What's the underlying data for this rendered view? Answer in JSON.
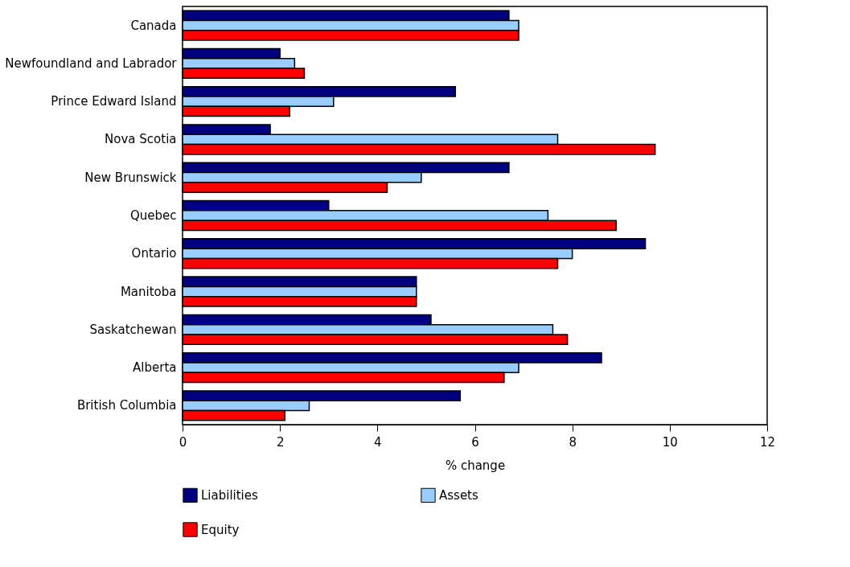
{
  "chart_data": {
    "type": "bar",
    "orientation": "horizontal",
    "xlabel": "% change",
    "categories": [
      "Canada",
      "Newfoundland and Labrador",
      "Prince Edward Island",
      "Nova Scotia",
      "New Brunswick",
      "Quebec",
      "Ontario",
      "Manitoba",
      "Saskatchewan",
      "Alberta",
      "British Columbia"
    ],
    "series": [
      {
        "name": "Liabilities",
        "color": "#000080",
        "values": [
          6.7,
          2.0,
          5.6,
          1.8,
          6.7,
          3.0,
          9.5,
          4.8,
          5.1,
          8.6,
          5.7
        ]
      },
      {
        "name": "Assets",
        "color": "#99ccff",
        "values": [
          6.9,
          2.3,
          3.1,
          7.7,
          4.9,
          7.5,
          8.0,
          4.8,
          7.6,
          6.9,
          2.6
        ]
      },
      {
        "name": "Equity",
        "color": "#ff0000",
        "values": [
          6.9,
          2.5,
          2.2,
          9.7,
          4.2,
          8.9,
          7.7,
          4.8,
          7.9,
          6.6,
          2.1
        ]
      }
    ],
    "xlim": [
      0,
      12
    ],
    "xticks": [
      0,
      2,
      4,
      6,
      8,
      10,
      12
    ],
    "grid": false,
    "legend": "bottom"
  }
}
